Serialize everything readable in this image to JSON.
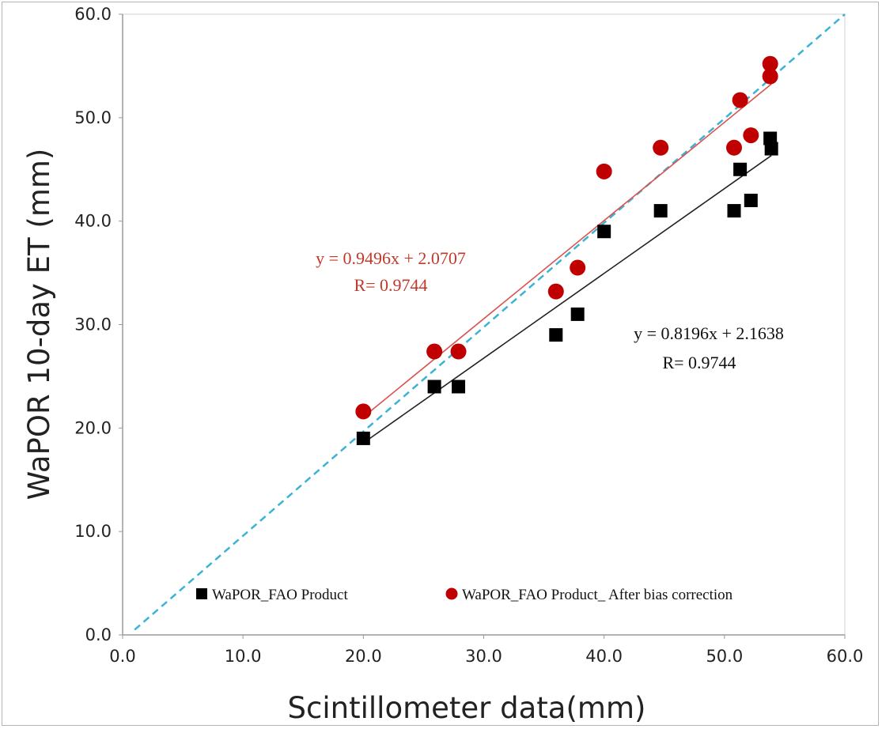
{
  "chart_data": {
    "type": "scatter",
    "xlabel": "Scintillometer data(mm)",
    "ylabel": "WaPOR 10-day ET (mm)",
    "xlim": [
      0,
      60
    ],
    "ylim": [
      0,
      60
    ],
    "xticks": [
      "0.0",
      "10.0",
      "20.0",
      "30.0",
      "40.0",
      "50.0",
      "60.0"
    ],
    "yticks": [
      "0.0",
      "10.0",
      "20.0",
      "30.0",
      "40.0",
      "50.0",
      "60.0"
    ],
    "grid": false,
    "legend_position": "bottom",
    "series": [
      {
        "name": "WaPOR_FAO Product",
        "marker": "square",
        "color": "#000000",
        "x": [
          20.0,
          25.9,
          27.9,
          36.0,
          37.8,
          40.0,
          44.7,
          50.8,
          51.3,
          52.2,
          53.8,
          53.9
        ],
        "y": [
          19.0,
          24.0,
          24.0,
          29.0,
          31.0,
          39.0,
          41.0,
          41.0,
          45.0,
          42.0,
          48.0,
          47.0
        ],
        "fit": {
          "slope": 0.8196,
          "intercept": 2.1638,
          "x_range": [
            20.0,
            53.9
          ],
          "color": "#222222"
        },
        "equation": "y = 0.8196x + 2.1638",
        "r_text": "R= 0.9744"
      },
      {
        "name": "WaPOR_FAO Product_ After bias correction",
        "marker": "circle",
        "color": "#c00000",
        "x": [
          20.0,
          25.9,
          27.9,
          36.0,
          37.8,
          40.0,
          44.7,
          50.8,
          51.3,
          52.2,
          53.8,
          53.8
        ],
        "y": [
          21.6,
          27.4,
          27.4,
          33.2,
          35.5,
          44.8,
          47.1,
          47.1,
          51.7,
          48.3,
          54.0,
          55.2
        ],
        "fit": {
          "slope": 0.9496,
          "intercept": 2.0707,
          "x_range": [
            20.0,
            53.9
          ],
          "color": "#d9534f"
        },
        "equation": "y = 0.9496x + 2.0707",
        "r_text": "R= 0.9744"
      }
    ],
    "reference_line": {
      "style": "dashed",
      "color": "#3bb3d4",
      "x": [
        1,
        60
      ],
      "y": [
        0.5,
        60
      ]
    }
  }
}
